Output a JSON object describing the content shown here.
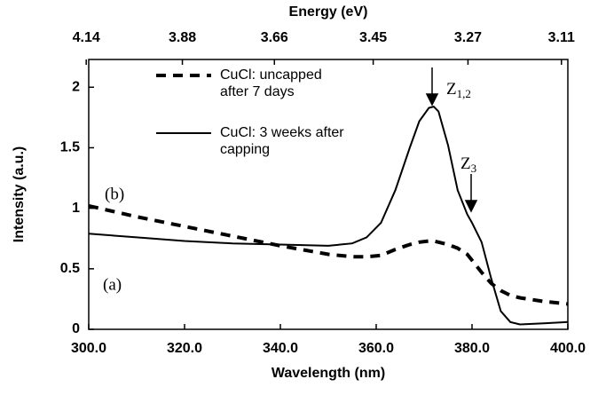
{
  "chart_data": {
    "type": "line",
    "x_label": "Wavelength (nm)",
    "x2_label": "Energy (eV)",
    "y_label": "Intensity (a.u.)",
    "x": [
      300,
      310,
      320,
      330,
      340,
      350,
      355,
      358,
      361,
      364,
      367,
      369,
      371,
      372,
      373,
      375,
      377,
      379,
      380,
      382,
      384,
      386,
      388,
      390,
      395,
      400
    ],
    "series": [
      {
        "name": "CuCl: uncapped after 7 days",
        "color": "#000000",
        "dash": true,
        "values": [
          1.02,
          0.93,
          0.85,
          0.77,
          0.69,
          0.62,
          0.6,
          0.6,
          0.61,
          0.66,
          0.7,
          0.72,
          0.73,
          0.73,
          0.72,
          0.7,
          0.67,
          0.62,
          0.57,
          0.47,
          0.38,
          0.32,
          0.28,
          0.26,
          0.23,
          0.21
        ]
      },
      {
        "name": "CuCl: 3 weeks after capping",
        "color": "#000000",
        "dash": false,
        "values": [
          0.79,
          0.76,
          0.73,
          0.71,
          0.7,
          0.69,
          0.71,
          0.76,
          0.88,
          1.15,
          1.5,
          1.72,
          1.83,
          1.84,
          1.8,
          1.52,
          1.15,
          0.95,
          0.88,
          0.72,
          0.42,
          0.15,
          0.06,
          0.04,
          0.05,
          0.06
        ]
      }
    ],
    "xlim": [
      300,
      400
    ],
    "ylim": [
      0,
      2.2
    ],
    "xticks": [
      {
        "value": 300,
        "label": "300.0"
      },
      {
        "value": 320,
        "label": "320.0"
      },
      {
        "value": 340,
        "label": "340.0"
      },
      {
        "value": 360,
        "label": "360.0"
      },
      {
        "value": 380,
        "label": "380.0"
      },
      {
        "value": 400,
        "label": "400.0"
      }
    ],
    "x2ticks": [
      4.14,
      3.88,
      3.66,
      3.45,
      3.27,
      3.11
    ],
    "yticks": [
      0,
      0.5,
      1,
      1.5,
      2
    ],
    "annotations": [
      {
        "text": "(b)"
      },
      {
        "text": "(a)"
      },
      {
        "text": "Z",
        "sub": "1,2"
      },
      {
        "text": "Z",
        "sub": "3"
      }
    ]
  }
}
